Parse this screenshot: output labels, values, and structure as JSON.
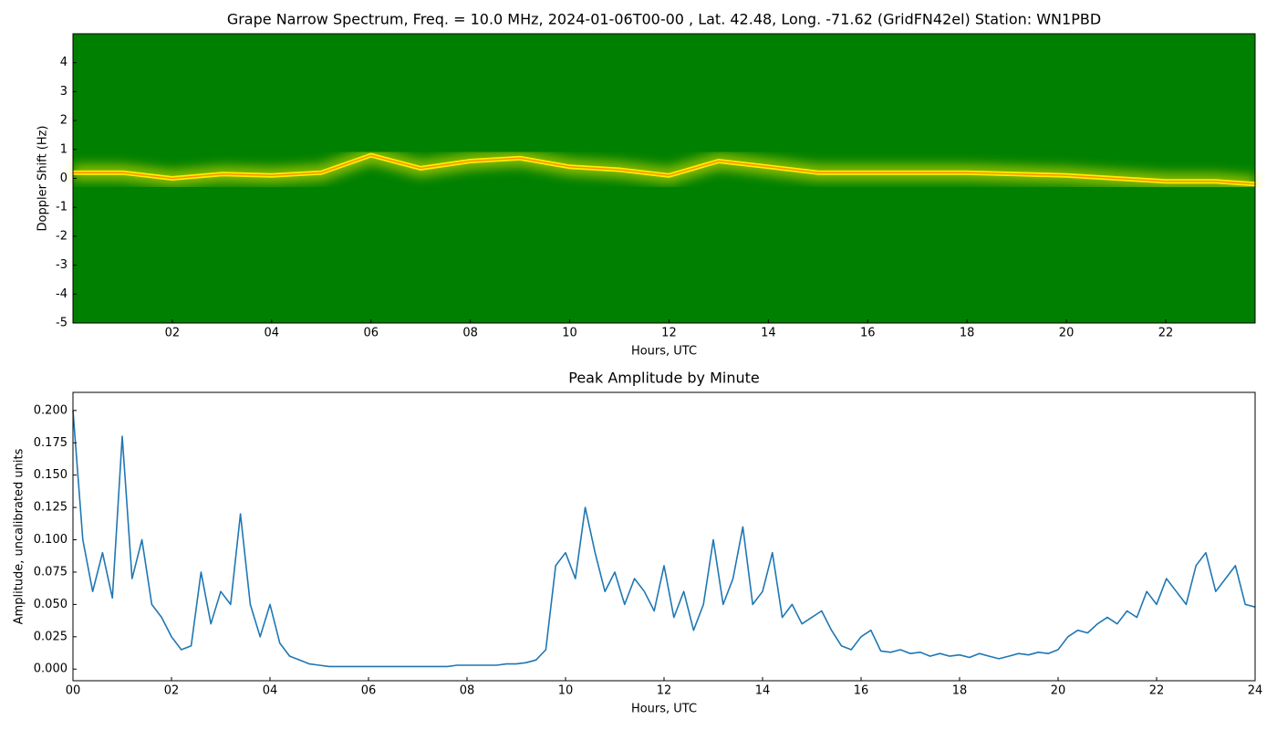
{
  "chart_data": [
    {
      "type": "spectrogram",
      "title": "Grape Narrow Spectrum, Freq. = 10.0 MHz, 2024-01-06T00-00 , Lat.  42.48, Long. -71.62 (GridFN42el) Station: WN1PBD",
      "xlabel": "Hours, UTC",
      "ylabel": "Doppler Shift (Hz)",
      "x": [
        0,
        1,
        2,
        3,
        4,
        5,
        6,
        7,
        8,
        9,
        10,
        11,
        12,
        13,
        14,
        15,
        16,
        17,
        18,
        19,
        20,
        21,
        22,
        23,
        23.8
      ],
      "values": [
        0.2,
        0.2,
        0,
        0.15,
        0.1,
        0.2,
        0.8,
        0.35,
        0.6,
        0.7,
        0.4,
        0.3,
        0.1,
        0.6,
        0.4,
        0.2,
        0.2,
        0.2,
        0.2,
        0.15,
        0.1,
        0,
        -0.1,
        -0.1,
        -0.2
      ],
      "color": "#ffee00",
      "xlim": [
        0,
        23.8
      ],
      "ylim": [
        -5,
        5
      ],
      "xticks": [
        {
          "value": 2,
          "label": "02"
        },
        {
          "value": 4,
          "label": "04"
        },
        {
          "value": 6,
          "label": "06"
        },
        {
          "value": 8,
          "label": "08"
        },
        {
          "value": 10,
          "label": "10"
        },
        {
          "value": 12,
          "label": "12"
        },
        {
          "value": 14,
          "label": "14"
        },
        {
          "value": 16,
          "label": "16"
        },
        {
          "value": 18,
          "label": "18"
        },
        {
          "value": 20,
          "label": "20"
        },
        {
          "value": 22,
          "label": "22"
        }
      ],
      "yticks": [
        -5,
        -4,
        -3,
        -2,
        -1,
        0,
        1,
        2,
        3,
        4
      ]
    },
    {
      "type": "line",
      "title": "Peak Amplitude by Minute",
      "xlabel": "Hours, UTC",
      "ylabel": "Amplitude, uncalibrated units",
      "x": [
        0,
        0.2,
        0.4,
        0.6,
        0.8,
        1,
        1.2,
        1.4,
        1.6,
        1.8,
        2,
        2.2,
        2.4,
        2.6,
        2.8,
        3,
        3.2,
        3.4,
        3.6,
        3.8,
        4,
        4.2,
        4.4,
        4.6,
        4.8,
        5,
        5.2,
        5.4,
        5.6,
        5.8,
        6,
        6.2,
        6.4,
        6.6,
        6.8,
        7,
        7.2,
        7.4,
        7.6,
        7.8,
        8,
        8.2,
        8.4,
        8.6,
        8.8,
        9,
        9.2,
        9.4,
        9.6,
        9.8,
        10,
        10.2,
        10.4,
        10.6,
        10.8,
        11,
        11.2,
        11.4,
        11.6,
        11.8,
        12,
        12.2,
        12.4,
        12.6,
        12.8,
        13,
        13.2,
        13.4,
        13.6,
        13.8,
        14,
        14.2,
        14.4,
        14.6,
        14.8,
        15,
        15.2,
        15.4,
        15.6,
        15.8,
        16,
        16.2,
        16.4,
        16.6,
        16.8,
        17,
        17.2,
        17.4,
        17.6,
        17.8,
        18,
        18.2,
        18.4,
        18.6,
        18.8,
        19,
        19.2,
        19.4,
        19.6,
        19.8,
        20,
        20.2,
        20.4,
        20.6,
        20.8,
        21,
        21.2,
        21.4,
        21.6,
        21.8,
        22,
        22.2,
        22.4,
        22.6,
        22.8,
        23,
        23.2,
        23.4,
        23.6,
        23.8,
        24
      ],
      "values": [
        0.2,
        0.1,
        0.06,
        0.09,
        0.055,
        0.18,
        0.07,
        0.1,
        0.05,
        0.04,
        0.025,
        0.015,
        0.018,
        0.075,
        0.035,
        0.06,
        0.05,
        0.12,
        0.05,
        0.025,
        0.05,
        0.02,
        0.01,
        0.007,
        0.004,
        0.003,
        0.002,
        0.002,
        0.002,
        0.002,
        0.002,
        0.002,
        0.002,
        0.002,
        0.002,
        0.002,
        0.002,
        0.002,
        0.002,
        0.003,
        0.003,
        0.003,
        0.003,
        0.003,
        0.004,
        0.004,
        0.005,
        0.007,
        0.015,
        0.08,
        0.09,
        0.07,
        0.125,
        0.09,
        0.06,
        0.075,
        0.05,
        0.07,
        0.06,
        0.045,
        0.08,
        0.04,
        0.06,
        0.03,
        0.05,
        0.1,
        0.05,
        0.07,
        0.11,
        0.05,
        0.06,
        0.09,
        0.04,
        0.05,
        0.035,
        0.04,
        0.045,
        0.03,
        0.018,
        0.015,
        0.025,
        0.03,
        0.014,
        0.013,
        0.015,
        0.012,
        0.013,
        0.01,
        0.012,
        0.01,
        0.011,
        0.009,
        0.012,
        0.01,
        0.008,
        0.01,
        0.012,
        0.011,
        0.013,
        0.012,
        0.015,
        0.025,
        0.03,
        0.028,
        0.035,
        0.04,
        0.035,
        0.045,
        0.04,
        0.06,
        0.05,
        0.07,
        0.06,
        0.05,
        0.08,
        0.09,
        0.06,
        0.07,
        0.08,
        0.05,
        0.048
      ],
      "color": "#1f77b4",
      "xlim": [
        0,
        24
      ],
      "ylim": [
        -0.009,
        0.214
      ],
      "xticks": [
        {
          "value": 0,
          "label": "00"
        },
        {
          "value": 2,
          "label": "02"
        },
        {
          "value": 4,
          "label": "04"
        },
        {
          "value": 6,
          "label": "06"
        },
        {
          "value": 8,
          "label": "08"
        },
        {
          "value": 10,
          "label": "10"
        },
        {
          "value": 12,
          "label": "12"
        },
        {
          "value": 14,
          "label": "14"
        },
        {
          "value": 16,
          "label": "16"
        },
        {
          "value": 18,
          "label": "18"
        },
        {
          "value": 20,
          "label": "20"
        },
        {
          "value": 22,
          "label": "22"
        },
        {
          "value": 24,
          "label": "24"
        }
      ],
      "yticks": [
        {
          "value": 0,
          "label": "0.000"
        },
        {
          "value": 0.025,
          "label": "0.025"
        },
        {
          "value": 0.05,
          "label": "0.050"
        },
        {
          "value": 0.075,
          "label": "0.075"
        },
        {
          "value": 0.1,
          "label": "0.100"
        },
        {
          "value": 0.125,
          "label": "0.125"
        },
        {
          "value": 0.15,
          "label": "0.150"
        },
        {
          "value": 0.175,
          "label": "0.175"
        },
        {
          "value": 0.2,
          "label": "0.200"
        }
      ]
    }
  ]
}
